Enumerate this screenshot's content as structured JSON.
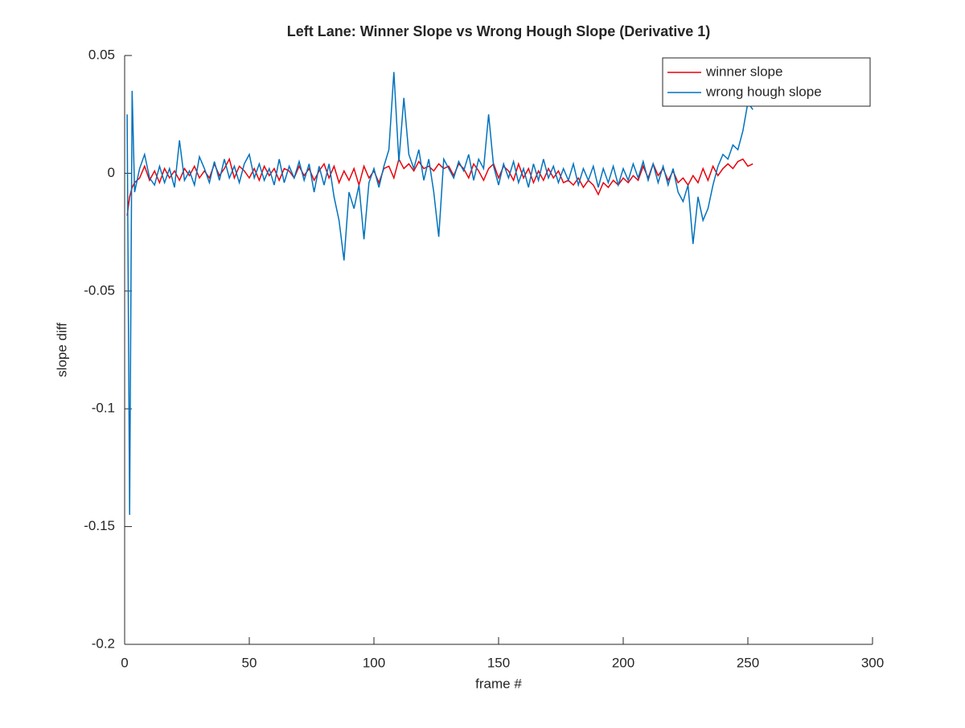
{
  "chart_data": {
    "type": "line",
    "title": "Left Lane: Winner Slope vs Wrong Hough Slope (Derivative 1)",
    "x_label": "frame #",
    "y_label": "slope diff",
    "xlim": [
      0,
      300
    ],
    "xticks": [
      0,
      50,
      100,
      150,
      200,
      250,
      300
    ],
    "ylim": [
      -0.2,
      0.05
    ],
    "yticks": [
      -0.2,
      -0.15,
      -0.1,
      -0.05,
      0,
      0.05
    ],
    "legend": "northeast",
    "x": [
      1,
      2,
      3,
      4,
      6,
      8,
      10,
      12,
      14,
      16,
      18,
      20,
      22,
      24,
      26,
      28,
      30,
      32,
      34,
      36,
      38,
      40,
      42,
      44,
      46,
      48,
      50,
      52,
      54,
      56,
      58,
      60,
      62,
      64,
      66,
      68,
      70,
      72,
      74,
      76,
      78,
      80,
      82,
      84,
      86,
      88,
      90,
      92,
      94,
      96,
      98,
      100,
      102,
      104,
      106,
      108,
      110,
      112,
      114,
      116,
      118,
      120,
      122,
      124,
      126,
      128,
      130,
      132,
      134,
      136,
      138,
      140,
      142,
      144,
      146,
      148,
      150,
      152,
      154,
      156,
      158,
      160,
      162,
      164,
      166,
      168,
      170,
      172,
      174,
      176,
      178,
      180,
      182,
      184,
      186,
      188,
      190,
      192,
      194,
      196,
      198,
      200,
      202,
      204,
      206,
      208,
      210,
      212,
      214,
      216,
      218,
      220,
      222,
      224,
      226,
      228,
      230,
      232,
      234,
      236,
      238,
      240,
      242,
      244,
      246,
      248,
      250,
      252
    ],
    "series": [
      {
        "name": "winner slope",
        "color": "#e8000b",
        "values": [
          -0.018,
          -0.01,
          -0.006,
          -0.004,
          -0.002,
          0.003,
          -0.003,
          0.001,
          -0.004,
          0.002,
          -0.002,
          0.001,
          -0.003,
          0.002,
          -0.001,
          0.003,
          -0.002,
          0.001,
          -0.002,
          0.004,
          -0.001,
          0.002,
          0.006,
          -0.002,
          0.003,
          0.001,
          -0.002,
          0.002,
          -0.003,
          0.003,
          -0.001,
          0.002,
          -0.003,
          0.002,
          0.001,
          -0.002,
          0.003,
          -0.001,
          0.002,
          -0.003,
          0.001,
          0.004,
          -0.002,
          0.003,
          -0.004,
          0.001,
          -0.003,
          0.002,
          -0.005,
          0.003,
          -0.002,
          0.001,
          -0.004,
          0.002,
          0.003,
          -0.002,
          0.006,
          0.002,
          0.004,
          0.001,
          0.005,
          0.002,
          0.003,
          0.001,
          0.004,
          0.002,
          0.003,
          -0.001,
          0.004,
          0.002,
          -0.002,
          0.004,
          0.001,
          -0.003,
          0.002,
          0.004,
          -0.002,
          0.003,
          0.001,
          -0.003,
          0.004,
          -0.002,
          0.002,
          -0.004,
          0.001,
          -0.003,
          0.002,
          -0.002,
          0.001,
          -0.004,
          -0.003,
          -0.005,
          -0.002,
          -0.006,
          -0.003,
          -0.005,
          -0.009,
          -0.004,
          -0.006,
          -0.003,
          -0.005,
          -0.002,
          -0.004,
          -0.001,
          -0.003,
          0.003,
          -0.002,
          0.004,
          -0.001,
          0.002,
          -0.003,
          0.001,
          -0.004,
          -0.002,
          -0.005,
          -0.001,
          -0.004,
          0.002,
          -0.003,
          0.003,
          -0.001,
          0.002,
          0.004,
          0.002,
          0.005,
          0.006,
          0.003,
          0.004
        ]
      },
      {
        "name": "wrong hough slope",
        "color": "#0072bd",
        "values": [
          0.025,
          -0.145,
          0.035,
          -0.008,
          0.002,
          0.008,
          -0.002,
          -0.005,
          0.003,
          -0.004,
          0.002,
          -0.006,
          0.014,
          -0.003,
          0.001,
          -0.005,
          0.007,
          0.002,
          -0.004,
          0.005,
          -0.003,
          0.006,
          -0.002,
          0.003,
          -0.004,
          0.004,
          0.008,
          -0.002,
          0.004,
          -0.003,
          0.002,
          -0.005,
          0.006,
          -0.004,
          0.003,
          -0.002,
          0.005,
          -0.003,
          0.004,
          -0.008,
          0.003,
          -0.005,
          0.004,
          -0.01,
          -0.02,
          -0.037,
          -0.008,
          -0.015,
          -0.005,
          -0.028,
          -0.004,
          0.002,
          -0.006,
          0.003,
          0.01,
          0.043,
          0.005,
          0.032,
          0.008,
          0.002,
          0.01,
          -0.003,
          0.006,
          -0.008,
          -0.027,
          0.006,
          0.002,
          -0.002,
          0.005,
          0.001,
          0.008,
          -0.003,
          0.006,
          0.002,
          0.025,
          0.003,
          -0.005,
          0.004,
          -0.002,
          0.005,
          -0.004,
          0.002,
          -0.006,
          0.004,
          -0.003,
          0.006,
          -0.002,
          0.003,
          -0.004,
          0.002,
          -0.003,
          0.004,
          -0.005,
          0.002,
          -0.003,
          0.003,
          -0.006,
          0.002,
          -0.004,
          0.003,
          -0.005,
          0.002,
          -0.003,
          0.004,
          -0.002,
          0.005,
          -0.003,
          0.004,
          -0.004,
          0.003,
          -0.005,
          0.002,
          -0.008,
          -0.012,
          -0.005,
          -0.03,
          -0.01,
          -0.02,
          -0.015,
          -0.005,
          0.003,
          0.008,
          0.006,
          0.012,
          0.01,
          0.018,
          0.03,
          0.027
        ]
      }
    ]
  }
}
